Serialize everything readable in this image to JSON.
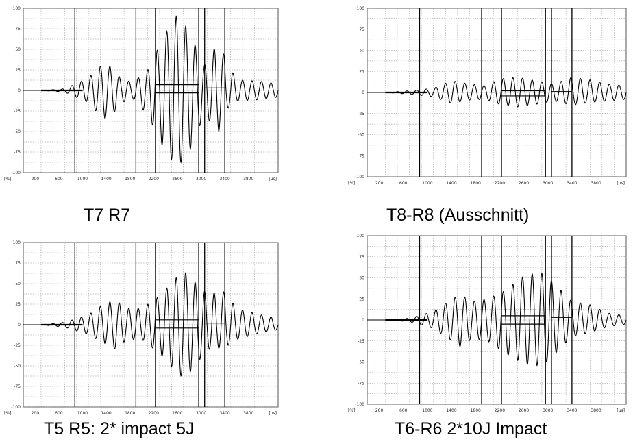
{
  "chart_data": [
    {
      "type": "line",
      "caption": "T7 R7",
      "title": "",
      "y_unit": "[%]",
      "x_unit": "[µs]",
      "xlim": [
        0,
        4300
      ],
      "ylim": [
        -100,
        100
      ],
      "y_ticks": [
        100,
        75,
        50,
        25,
        0,
        -25,
        -50,
        -75,
        -100
      ],
      "x_ticks": [
        200,
        600,
        1000,
        1400,
        1800,
        2200,
        2600,
        3000,
        3400,
        3800
      ],
      "grid": true,
      "markers": [
        870,
        1900,
        2230,
        2960,
        3060,
        3400
      ],
      "bars": [
        {
          "x1": 2230,
          "x2": 2960,
          "y": 7
        },
        {
          "x1": 2230,
          "x2": 2960,
          "y": -3
        },
        {
          "x1": 3060,
          "x2": 3400,
          "y": 3
        }
      ],
      "envelope": [
        [
          0,
          0
        ],
        [
          300,
          0
        ],
        [
          700,
          2
        ],
        [
          1100,
          15
        ],
        [
          1350,
          33
        ],
        [
          1500,
          28
        ],
        [
          1650,
          14
        ],
        [
          1850,
          10
        ],
        [
          2100,
          25
        ],
        [
          2400,
          70
        ],
        [
          2600,
          92
        ],
        [
          2800,
          72
        ],
        [
          3050,
          30
        ],
        [
          3300,
          60
        ],
        [
          3400,
          40
        ],
        [
          3600,
          13
        ],
        [
          4000,
          11
        ],
        [
          4300,
          8
        ]
      ],
      "envelope_neg": [
        [
          0,
          0
        ],
        [
          300,
          0
        ],
        [
          700,
          -2
        ],
        [
          1100,
          -15
        ],
        [
          1350,
          -35
        ],
        [
          1500,
          -30
        ],
        [
          1650,
          -15
        ],
        [
          1850,
          -10
        ],
        [
          2100,
          -30
        ],
        [
          2400,
          -75
        ],
        [
          2600,
          -93
        ],
        [
          2800,
          -75
        ],
        [
          3050,
          -30
        ],
        [
          3300,
          -50
        ],
        [
          3400,
          -25
        ],
        [
          3600,
          -13
        ],
        [
          4000,
          -11
        ],
        [
          4300,
          -8
        ]
      ]
    },
    {
      "type": "line",
      "caption": "T8-R8 (Ausschnitt)",
      "title": "",
      "y_unit": "[%]",
      "x_unit": "[µs]",
      "xlim": [
        0,
        4300
      ],
      "ylim": [
        -100,
        100
      ],
      "y_ticks": [
        100,
        75,
        50,
        25,
        0,
        -25,
        -50,
        -75,
        -100
      ],
      "x_ticks": [
        200,
        600,
        1000,
        1400,
        1800,
        2200,
        2600,
        3000,
        3400,
        3800
      ],
      "grid": true,
      "markers": [
        870,
        1900,
        2230,
        2960,
        3060,
        3400
      ],
      "bars": [
        {
          "x1": 2230,
          "x2": 2960,
          "y": 2
        },
        {
          "x1": 2230,
          "x2": 2960,
          "y": -4
        },
        {
          "x1": 3060,
          "x2": 3400,
          "y": 1
        }
      ],
      "envelope": [
        [
          0,
          0
        ],
        [
          300,
          0
        ],
        [
          700,
          2
        ],
        [
          1100,
          5
        ],
        [
          1400,
          14
        ],
        [
          1700,
          10
        ],
        [
          1950,
          8
        ],
        [
          2200,
          16
        ],
        [
          2500,
          18
        ],
        [
          2800,
          14
        ],
        [
          3100,
          10
        ],
        [
          3400,
          18
        ],
        [
          3700,
          15
        ],
        [
          4000,
          10
        ],
        [
          4300,
          8
        ]
      ],
      "envelope_neg": [
        [
          0,
          0
        ],
        [
          300,
          0
        ],
        [
          700,
          -2
        ],
        [
          1100,
          -5
        ],
        [
          1400,
          -13
        ],
        [
          1700,
          -9
        ],
        [
          1950,
          -8
        ],
        [
          2200,
          -14
        ],
        [
          2500,
          -17
        ],
        [
          2800,
          -14
        ],
        [
          3100,
          -10
        ],
        [
          3400,
          -15
        ],
        [
          3700,
          -12
        ],
        [
          4000,
          -10
        ],
        [
          4300,
          -8
        ]
      ]
    },
    {
      "type": "line",
      "caption": "T5 R5: 2* impact 5J",
      "title": "",
      "y_unit": "[%]",
      "x_unit": "[µs]",
      "xlim": [
        0,
        4300
      ],
      "ylim": [
        -100,
        100
      ],
      "y_ticks": [
        100,
        75,
        50,
        25,
        0,
        -25,
        -50,
        -75,
        -100
      ],
      "x_ticks": [
        200,
        600,
        1000,
        1400,
        1800,
        2200,
        2600,
        3000,
        3400,
        3800
      ],
      "grid": true,
      "markers": [
        870,
        1900,
        2230,
        2960,
        3060,
        3400
      ],
      "bars": [
        {
          "x1": 2230,
          "x2": 2960,
          "y": 6
        },
        {
          "x1": 2230,
          "x2": 2960,
          "y": -4
        },
        {
          "x1": 3060,
          "x2": 3400,
          "y": 2
        }
      ],
      "envelope": [
        [
          0,
          0
        ],
        [
          300,
          0
        ],
        [
          700,
          3
        ],
        [
          1100,
          12
        ],
        [
          1350,
          25
        ],
        [
          1550,
          30
        ],
        [
          1750,
          20
        ],
        [
          2000,
          20
        ],
        [
          2300,
          35
        ],
        [
          2550,
          55
        ],
        [
          2700,
          66
        ],
        [
          2850,
          55
        ],
        [
          3100,
          38
        ],
        [
          3400,
          40
        ],
        [
          3600,
          20
        ],
        [
          4000,
          12
        ],
        [
          4300,
          8
        ]
      ],
      "envelope_neg": [
        [
          0,
          0
        ],
        [
          300,
          0
        ],
        [
          700,
          -3
        ],
        [
          1100,
          -12
        ],
        [
          1350,
          -22
        ],
        [
          1550,
          -30
        ],
        [
          1750,
          -18
        ],
        [
          2000,
          -18
        ],
        [
          2300,
          -35
        ],
        [
          2550,
          -55
        ],
        [
          2700,
          -65
        ],
        [
          2850,
          -55
        ],
        [
          3100,
          -30
        ],
        [
          3400,
          -28
        ],
        [
          3600,
          -18
        ],
        [
          4000,
          -10
        ],
        [
          4300,
          -6
        ]
      ]
    },
    {
      "type": "line",
      "caption": "T6-R6 2*10J Impact",
      "title": "",
      "y_unit": "[%]",
      "x_unit": "[µs]",
      "xlim": [
        0,
        4300
      ],
      "ylim": [
        -100,
        100
      ],
      "y_ticks": [
        100,
        75,
        50,
        25,
        0,
        -25,
        -50,
        -75,
        -100
      ],
      "x_ticks": [
        200,
        600,
        1000,
        1400,
        1800,
        2200,
        2600,
        3000,
        3400,
        3800
      ],
      "grid": true,
      "markers": [
        870,
        1900,
        2230,
        2960,
        3060,
        3400
      ],
      "bars": [
        {
          "x1": 2230,
          "x2": 2960,
          "y": 5
        },
        {
          "x1": 2230,
          "x2": 2960,
          "y": -5
        },
        {
          "x1": 3060,
          "x2": 3400,
          "y": 3
        }
      ],
      "envelope": [
        [
          0,
          0
        ],
        [
          300,
          0
        ],
        [
          700,
          2
        ],
        [
          1100,
          10
        ],
        [
          1400,
          25
        ],
        [
          1550,
          30
        ],
        [
          1750,
          22
        ],
        [
          2000,
          25
        ],
        [
          2300,
          35
        ],
        [
          2550,
          50
        ],
        [
          2750,
          55
        ],
        [
          2950,
          55
        ],
        [
          3150,
          40
        ],
        [
          3400,
          22
        ],
        [
          3700,
          18
        ],
        [
          4000,
          8
        ],
        [
          4300,
          5
        ]
      ],
      "envelope_neg": [
        [
          0,
          0
        ],
        [
          300,
          0
        ],
        [
          700,
          -2
        ],
        [
          1100,
          -10
        ],
        [
          1400,
          -25
        ],
        [
          1550,
          -32
        ],
        [
          1750,
          -22
        ],
        [
          2000,
          -25
        ],
        [
          2300,
          -40
        ],
        [
          2550,
          -50
        ],
        [
          2750,
          -55
        ],
        [
          2950,
          -52
        ],
        [
          3150,
          -38
        ],
        [
          3400,
          -20
        ],
        [
          3700,
          -15
        ],
        [
          4000,
          -8
        ],
        [
          4300,
          -5
        ]
      ]
    }
  ]
}
